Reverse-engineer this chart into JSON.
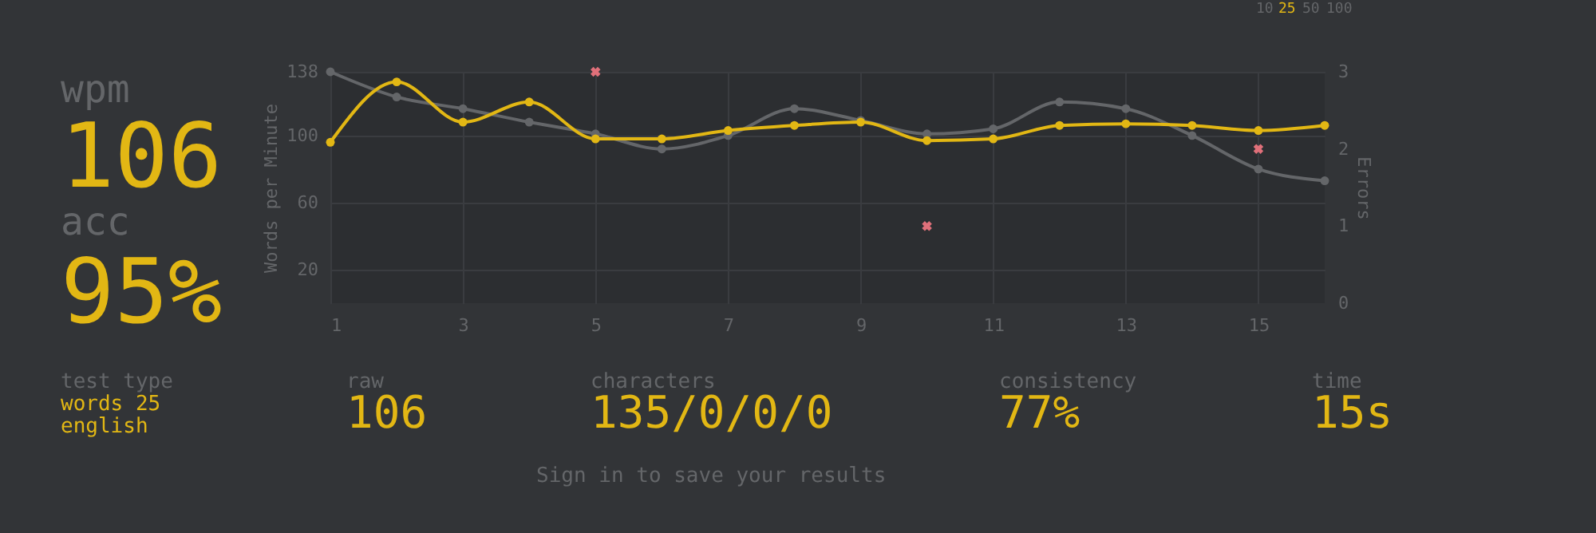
{
  "chart_data": {
    "type": "line",
    "ylabel": "Words per Minute",
    "y2label": "Errors",
    "x": [
      1,
      2,
      3,
      4,
      5,
      6,
      7,
      8,
      9,
      10,
      11,
      12,
      13,
      14,
      15,
      16
    ],
    "xlim": [
      1,
      16
    ],
    "xticks": [
      1,
      3,
      5,
      7,
      9,
      11,
      13,
      15
    ],
    "ylim": [
      0,
      138
    ],
    "yticks": [
      20,
      60,
      100,
      138
    ],
    "y2lim": [
      0,
      3
    ],
    "y2ticks": [
      0,
      1,
      2,
      3
    ],
    "grid": true,
    "marker": "circle",
    "line_style": "solid",
    "series": [
      {
        "color": "#646669",
        "values": [
          138,
          123,
          116,
          108,
          101,
          92,
          100,
          116,
          109,
          101,
          104,
          120,
          116,
          100,
          80,
          73
        ]
      },
      {
        "color": "#e2b714",
        "values": [
          96,
          132,
          108,
          120,
          98,
          98,
          103,
          106,
          108,
          97,
          98,
          106,
          107,
          106,
          103,
          106
        ]
      },
      {
        "type": "scatter",
        "axis": "y2",
        "marker": "cross",
        "color": "#e0707a",
        "x": [
          5,
          10,
          15
        ],
        "values": [
          3,
          1,
          2
        ]
      }
    ],
    "annotations": [
      "wpm",
      "106",
      "acc",
      "95%",
      "test type",
      "words 25",
      "english",
      "raw",
      "106",
      "characters",
      "135/0/0/0",
      "consistency",
      "77%",
      "time",
      "15s",
      "Sign in to save your results",
      "10",
      "25",
      "50",
      "100"
    ]
  }
}
